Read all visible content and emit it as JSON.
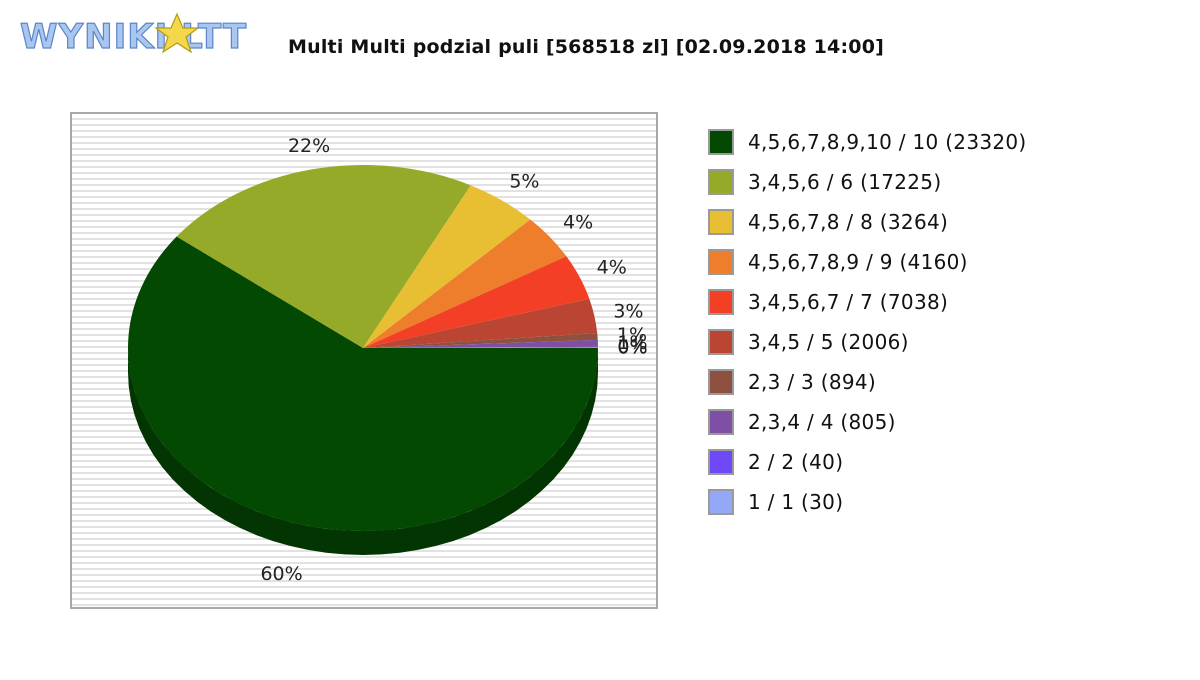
{
  "logo": {
    "text": "WYNIKI LOTTO"
  },
  "chart_data": {
    "type": "pie",
    "title": "Multi Multi podzial puli [568518 zl] [02.09.2018 14:00]",
    "legend_position": "right",
    "slices": [
      {
        "label": "4,5,6,7,8,9,10 / 10 (23320)",
        "percent_label": "60%",
        "value": 60,
        "color": "#034901"
      },
      {
        "label": "3,4,5,6 / 6 (17225)",
        "percent_label": "22%",
        "value": 22,
        "color": "#94AA28"
      },
      {
        "label": "4,5,6,7,8 / 8 (3264)",
        "percent_label": "5%",
        "value": 5,
        "color": "#E8BF33"
      },
      {
        "label": "4,5,6,7,8,9 / 9 (4160)",
        "percent_label": "4%",
        "value": 4,
        "color": "#EE7E2C"
      },
      {
        "label": "3,4,5,6,7 / 7 (7038)",
        "percent_label": "4%",
        "value": 4,
        "color": "#F23F25"
      },
      {
        "label": "3,4,5 / 5 (2006)",
        "percent_label": "3%",
        "value": 3,
        "color": "#BB4533"
      },
      {
        "label": "2,3 / 3 (894)",
        "percent_label": "1%",
        "value": 0.6,
        "color": "#8E5140"
      },
      {
        "label": "2,3,4 / 4 (805)",
        "percent_label": "1%",
        "value": 0.6,
        "color": "#7E4FA5"
      },
      {
        "label": "2 / 2 (40)",
        "percent_label": "0%",
        "value": 0.05,
        "color": "#6F48F8"
      },
      {
        "label": "1 / 1 (30)",
        "percent_label": "0%",
        "value": 0.05,
        "color": "#93A8F6"
      }
    ]
  }
}
